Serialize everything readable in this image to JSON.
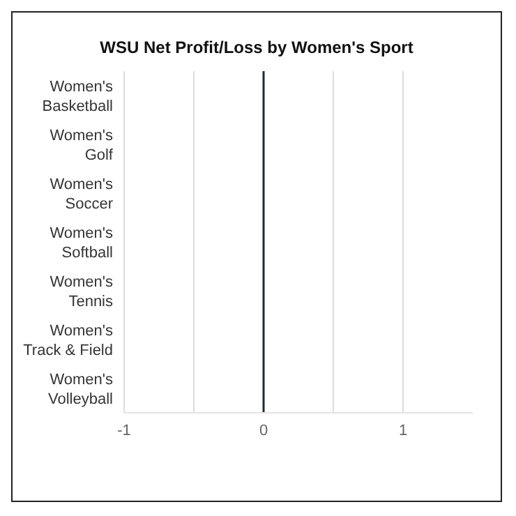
{
  "chart_data": {
    "type": "bar",
    "orientation": "horizontal",
    "title": "WSU Net Profit/Loss by Women's Sport",
    "categories": [
      "Women's Basketball",
      "Women's Golf",
      "Women's Soccer",
      "Women's Softball",
      "Women's Tennis",
      "Women's Track & Field",
      "Women's Volleyball"
    ],
    "values": [
      0,
      0,
      0,
      0,
      0,
      0,
      0
    ],
    "xlim": [
      -1,
      1.5
    ],
    "xticks": [
      -1,
      {
        "value": -0.5,
        "label": null
      },
      0,
      {
        "value": 0.5,
        "label": null
      },
      1
    ],
    "ref_lines": [
      {
        "axis": "x",
        "value": 0,
        "color": "#1c2b36"
      }
    ],
    "grid": "x"
  }
}
